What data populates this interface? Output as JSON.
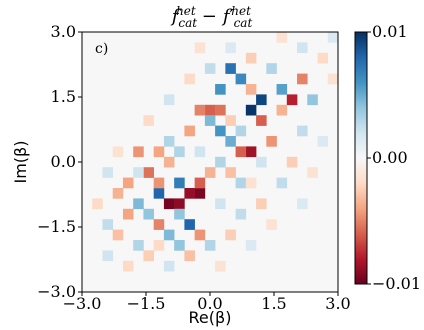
{
  "chart_data": {
    "type": "heatmap",
    "title": "f_cat^het − f′_cat^het",
    "title_parts": {
      "main_1": "f",
      "sup_1": "het",
      "sub_1": "cat",
      "minus": "−",
      "main_2": "f′",
      "sup_2": "het",
      "sub_2": "cat"
    },
    "panel_label": "c)",
    "xlabel": "Re(β)",
    "ylabel": "Im(β)",
    "xlim": [
      -3.0,
      3.0
    ],
    "ylim": [
      -3.0,
      3.0
    ],
    "x_ticks": [
      {
        "value": -3.0,
        "label": "−3.0"
      },
      {
        "value": -1.5,
        "label": "−1.5"
      },
      {
        "value": 0.0,
        "label": "0.0"
      },
      {
        "value": 1.5,
        "label": "1.5"
      },
      {
        "value": 3.0,
        "label": "3.0"
      }
    ],
    "y_ticks": [
      {
        "value": -3.0,
        "label": "−3.0"
      },
      {
        "value": -1.5,
        "label": "−1.5"
      },
      {
        "value": 0.0,
        "label": "0.0"
      },
      {
        "value": 1.5,
        "label": "1.5"
      },
      {
        "value": 3.0,
        "label": "3.0"
      }
    ],
    "grid": false,
    "colormap": "RdBu_r",
    "colors": {
      "negative": "#67001f",
      "zero": "#f7f7f7",
      "positive": "#053061"
    },
    "colorbar": {
      "range": [
        -0.01,
        0.01
      ],
      "ticks": [
        {
          "value": 0.01,
          "label": "0.01"
        },
        {
          "value": 0.0,
          "label": "0.00"
        },
        {
          "value": -0.01,
          "label": "−0.01"
        }
      ]
    },
    "grid_size": 25,
    "cells": [
      {
        "x": -0.96,
        "y": -0.96,
        "v": -0.0096
      },
      {
        "x": -0.24,
        "y": -0.72,
        "v": -0.0095
      },
      {
        "x": -0.48,
        "y": -0.72,
        "v": -0.0088
      },
      {
        "x": -0.72,
        "y": -0.96,
        "v": -0.009
      },
      {
        "x": 0.96,
        "y": 1.2,
        "v": 0.0098
      },
      {
        "x": 1.2,
        "y": 1.44,
        "v": 0.0092
      },
      {
        "x": 1.92,
        "y": 1.44,
        "v": -0.0078
      },
      {
        "x": 0.96,
        "y": 0.24,
        "v": -0.0085
      },
      {
        "x": 0.72,
        "y": 0.24,
        "v": -0.006
      },
      {
        "x": -1.2,
        "y": -0.72,
        "v": 0.008
      },
      {
        "x": -1.44,
        "y": -0.24,
        "v": -0.0055
      },
      {
        "x": -1.2,
        "y": -0.48,
        "v": -0.0045
      },
      {
        "x": -0.72,
        "y": -0.48,
        "v": 0.007
      },
      {
        "x": -0.48,
        "y": -1.44,
        "v": 0.008
      },
      {
        "x": -0.72,
        "y": -1.2,
        "v": 0.004
      },
      {
        "x": 0.48,
        "y": 2.16,
        "v": 0.0075
      },
      {
        "x": 0.24,
        "y": 1.68,
        "v": 0.006
      },
      {
        "x": 0.72,
        "y": 1.92,
        "v": 0.0065
      },
      {
        "x": 0.24,
        "y": 0.72,
        "v": 0.006
      },
      {
        "x": 0.48,
        "y": 0.48,
        "v": 0.005
      },
      {
        "x": 1.2,
        "y": 0.96,
        "v": -0.006
      },
      {
        "x": 1.68,
        "y": 1.68,
        "v": 0.0055
      },
      {
        "x": 2.16,
        "y": 1.92,
        "v": -0.005
      },
      {
        "x": 2.4,
        "y": 1.44,
        "v": 0.004
      },
      {
        "x": 1.44,
        "y": 0.48,
        "v": -0.0045
      },
      {
        "x": 0.0,
        "y": 1.2,
        "v": -0.006
      },
      {
        "x": 0.24,
        "y": 1.2,
        "v": -0.0055
      },
      {
        "x": -0.24,
        "y": 1.2,
        "v": -0.005
      },
      {
        "x": 0.0,
        "y": 0.96,
        "v": 0.0045
      },
      {
        "x": -0.48,
        "y": 0.72,
        "v": -0.004
      },
      {
        "x": -1.92,
        "y": -0.48,
        "v": -0.004
      },
      {
        "x": -2.16,
        "y": -0.72,
        "v": -0.0035
      },
      {
        "x": -1.68,
        "y": 0.24,
        "v": -0.0045
      },
      {
        "x": -1.2,
        "y": 0.24,
        "v": -0.004
      },
      {
        "x": -1.68,
        "y": -0.96,
        "v": 0.0045
      },
      {
        "x": -1.44,
        "y": -1.2,
        "v": 0.004
      },
      {
        "x": -1.92,
        "y": -1.2,
        "v": -0.004
      },
      {
        "x": -1.2,
        "y": -1.44,
        "v": -0.005
      },
      {
        "x": -0.96,
        "y": -1.68,
        "v": 0.0045
      },
      {
        "x": -0.24,
        "y": -1.68,
        "v": -0.0045
      },
      {
        "x": -0.72,
        "y": -1.92,
        "v": 0.004
      },
      {
        "x": -0.24,
        "y": -0.48,
        "v": -0.006
      },
      {
        "x": 0.0,
        "y": -0.24,
        "v": -0.0035
      },
      {
        "x": 0.24,
        "y": 0.0,
        "v": 0.003
      },
      {
        "x": 0.48,
        "y": -0.24,
        "v": -0.003
      },
      {
        "x": 0.72,
        "y": -0.48,
        "v": 0.003
      },
      {
        "x": -0.96,
        "y": 0.0,
        "v": -0.0035
      },
      {
        "x": -0.72,
        "y": 0.24,
        "v": 0.003
      },
      {
        "x": -0.96,
        "y": 0.48,
        "v": 0.003
      },
      {
        "x": -2.16,
        "y": -1.68,
        "v": -0.003
      },
      {
        "x": -2.4,
        "y": -1.44,
        "v": 0.0025
      },
      {
        "x": -1.68,
        "y": -1.92,
        "v": 0.003
      },
      {
        "x": -1.44,
        "y": -2.16,
        "v": -0.0025
      },
      {
        "x": -0.48,
        "y": -2.16,
        "v": -0.003
      },
      {
        "x": 0.0,
        "y": -1.92,
        "v": 0.003
      },
      {
        "x": 0.48,
        "y": -1.68,
        "v": -0.0025
      },
      {
        "x": 0.72,
        "y": -1.2,
        "v": 0.0025
      },
      {
        "x": 1.2,
        "y": -0.96,
        "v": -0.0025
      },
      {
        "x": 1.68,
        "y": -0.48,
        "v": 0.0025
      },
      {
        "x": 1.92,
        "y": 0.0,
        "v": -0.0025
      },
      {
        "x": 2.16,
        "y": 0.72,
        "v": 0.0025
      },
      {
        "x": 1.68,
        "y": 1.2,
        "v": -0.0035
      },
      {
        "x": 0.96,
        "y": 1.68,
        "v": -0.0035
      },
      {
        "x": 1.44,
        "y": 2.16,
        "v": 0.003
      },
      {
        "x": 0.96,
        "y": 2.4,
        "v": -0.0025
      },
      {
        "x": 0.0,
        "y": 2.16,
        "v": 0.0025
      },
      {
        "x": -0.48,
        "y": 1.92,
        "v": -0.002
      },
      {
        "x": -0.96,
        "y": 1.44,
        "v": 0.002
      },
      {
        "x": -1.44,
        "y": 0.96,
        "v": -0.002
      },
      {
        "x": -2.4,
        "y": -0.24,
        "v": 0.002
      },
      {
        "x": -2.64,
        "y": -0.96,
        "v": -0.002
      },
      {
        "x": -2.4,
        "y": -2.16,
        "v": 0.002
      },
      {
        "x": -1.92,
        "y": -2.4,
        "v": -0.002
      },
      {
        "x": -0.96,
        "y": -2.4,
        "v": 0.002
      },
      {
        "x": 0.24,
        "y": -2.4,
        "v": -0.0015
      },
      {
        "x": 0.96,
        "y": -1.92,
        "v": 0.0015
      },
      {
        "x": 1.44,
        "y": -1.44,
        "v": -0.0015
      },
      {
        "x": 2.16,
        "y": -0.96,
        "v": 0.0015
      },
      {
        "x": 2.4,
        "y": -0.24,
        "v": -0.0015
      },
      {
        "x": 2.64,
        "y": 0.48,
        "v": 0.0015
      },
      {
        "x": 2.64,
        "y": 2.4,
        "v": -0.002
      },
      {
        "x": 2.16,
        "y": 2.64,
        "v": 0.002
      },
      {
        "x": 1.68,
        "y": 2.88,
        "v": -0.0015
      },
      {
        "x": 0.48,
        "y": 2.64,
        "v": 0.0015
      },
      {
        "x": -0.24,
        "y": 2.64,
        "v": -0.0015
      },
      {
        "x": 2.88,
        "y": 2.88,
        "v": 0.0015
      },
      {
        "x": 2.88,
        "y": 1.92,
        "v": -0.0015
      },
      {
        "x": 1.2,
        "y": 0.0,
        "v": 0.002
      },
      {
        "x": 0.48,
        "y": 0.96,
        "v": -0.0025
      },
      {
        "x": -0.24,
        "y": 0.24,
        "v": 0.002
      },
      {
        "x": -1.68,
        "y": -0.24,
        "v": 0.002
      },
      {
        "x": -2.16,
        "y": 0.24,
        "v": -0.0015
      },
      {
        "x": -1.2,
        "y": -1.92,
        "v": -0.002
      },
      {
        "x": 0.24,
        "y": -0.96,
        "v": 0.002
      },
      {
        "x": 0.96,
        "y": -0.48,
        "v": -0.0015
      },
      {
        "x": 0.72,
        "y": 0.72,
        "v": 0.003
      }
    ]
  }
}
